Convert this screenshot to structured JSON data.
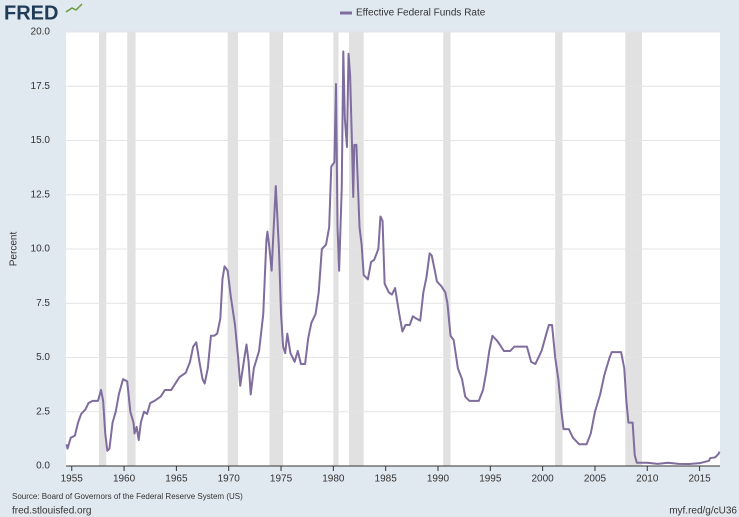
{
  "logo": "FRED",
  "chart_data": {
    "type": "line",
    "y_label": "Percent",
    "x": [
      1954.5,
      1954.6,
      1954.9,
      1955.3,
      1955.6,
      1955.9,
      1956.3,
      1956.6,
      1957.0,
      1957.5,
      1957.8,
      1958.0,
      1958.2,
      1958.4,
      1958.6,
      1958.9,
      1959.2,
      1959.5,
      1959.9,
      1960.3,
      1960.6,
      1960.9,
      1961.0,
      1961.2,
      1961.4,
      1961.6,
      1961.9,
      1962.2,
      1962.5,
      1962.9,
      1963.5,
      1963.9,
      1964.5,
      1964.9,
      1965.3,
      1965.9,
      1966.3,
      1966.6,
      1966.9,
      1967.2,
      1967.5,
      1967.7,
      1968.0,
      1968.3,
      1968.6,
      1968.9,
      1969.2,
      1969.4,
      1969.6,
      1969.9,
      1970.2,
      1970.6,
      1970.9,
      1971.1,
      1971.5,
      1971.7,
      1971.9,
      1972.1,
      1972.4,
      1972.9,
      1973.3,
      1973.6,
      1973.7,
      1973.9,
      1974.1,
      1974.3,
      1974.5,
      1974.8,
      1975.0,
      1975.2,
      1975.4,
      1975.6,
      1975.9,
      1976.3,
      1976.6,
      1976.9,
      1977.3,
      1977.6,
      1977.9,
      1978.3,
      1978.6,
      1978.9,
      1979.3,
      1979.6,
      1979.8,
      1980.1,
      1980.25,
      1980.4,
      1980.55,
      1980.8,
      1980.95,
      1981.1,
      1981.3,
      1981.45,
      1981.6,
      1981.8,
      1981.9,
      1982.0,
      1982.2,
      1982.5,
      1982.7,
      1982.9,
      1983.3,
      1983.6,
      1983.9,
      1984.3,
      1984.5,
      1984.7,
      1984.9,
      1985.3,
      1985.6,
      1985.9,
      1986.3,
      1986.6,
      1986.9,
      1987.3,
      1987.6,
      1987.9,
      1988.3,
      1988.6,
      1988.9,
      1989.2,
      1989.4,
      1989.7,
      1989.9,
      1990.3,
      1990.7,
      1990.9,
      1991.2,
      1991.5,
      1991.9,
      1992.3,
      1992.6,
      1993.0,
      1993.5,
      1993.9,
      1994.3,
      1994.6,
      1994.9,
      1995.2,
      1995.6,
      1995.9,
      1996.3,
      1996.9,
      1997.3,
      1997.9,
      1998.5,
      1998.9,
      1999.3,
      1999.9,
      2000.3,
      2000.6,
      2000.9,
      2001.2,
      2001.5,
      2001.8,
      2002.0,
      2002.5,
      2002.9,
      2003.5,
      2004.2,
      2004.6,
      2005.0,
      2005.5,
      2005.9,
      2006.4,
      2006.6,
      2007.5,
      2007.8,
      2008.0,
      2008.2,
      2008.6,
      2008.8,
      2009.0,
      2010.0,
      2011.0,
      2012.0,
      2013.0,
      2014.0,
      2015.0,
      2015.9,
      2016.0,
      2016.5,
      2016.8,
      2016.9
    ],
    "series": [
      {
        "name": "Effective Federal Funds Rate",
        "color": "#7f6d9e",
        "values": [
          1.0,
          0.8,
          1.3,
          1.4,
          2.0,
          2.4,
          2.6,
          2.9,
          3.0,
          3.0,
          3.5,
          3.0,
          1.5,
          0.7,
          0.8,
          2.0,
          2.5,
          3.3,
          4.0,
          3.9,
          2.5,
          2.0,
          1.5,
          1.8,
          1.2,
          2.0,
          2.5,
          2.4,
          2.9,
          3.0,
          3.2,
          3.5,
          3.5,
          3.8,
          4.1,
          4.3,
          4.8,
          5.5,
          5.7,
          4.8,
          4.0,
          3.8,
          4.5,
          6.0,
          6.0,
          6.1,
          6.8,
          8.6,
          9.2,
          9.0,
          7.8,
          6.5,
          5.0,
          3.7,
          5.0,
          5.6,
          4.8,
          3.3,
          4.5,
          5.3,
          7.0,
          10.4,
          10.8,
          10.0,
          9.0,
          11.0,
          12.9,
          10.0,
          7.0,
          5.5,
          5.2,
          6.1,
          5.2,
          4.8,
          5.3,
          4.7,
          4.7,
          5.9,
          6.6,
          7.0,
          8.0,
          10.0,
          10.2,
          11.0,
          13.8,
          14.0,
          17.6,
          11.0,
          9.0,
          12.8,
          19.1,
          16.0,
          14.7,
          19.0,
          18.0,
          14.5,
          12.4,
          14.8,
          14.8,
          11.0,
          10.2,
          8.8,
          8.6,
          9.4,
          9.5,
          10.0,
          11.5,
          11.3,
          8.4,
          8.0,
          7.9,
          8.2,
          7.0,
          6.2,
          6.5,
          6.5,
          6.9,
          6.8,
          6.7,
          8.0,
          8.7,
          9.8,
          9.7,
          9.0,
          8.5,
          8.3,
          8.0,
          7.5,
          6.0,
          5.8,
          4.5,
          4.0,
          3.2,
          3.0,
          3.0,
          3.0,
          3.5,
          4.3,
          5.3,
          6.0,
          5.8,
          5.6,
          5.3,
          5.3,
          5.5,
          5.5,
          5.5,
          4.8,
          4.7,
          5.3,
          6.0,
          6.5,
          6.5,
          5.0,
          4.0,
          2.5,
          1.7,
          1.7,
          1.3,
          1.0,
          1.0,
          1.5,
          2.5,
          3.3,
          4.2,
          5.0,
          5.25,
          5.25,
          4.5,
          3.0,
          2.0,
          2.0,
          0.5,
          0.15,
          0.15,
          0.1,
          0.15,
          0.1,
          0.09,
          0.13,
          0.24,
          0.36,
          0.4,
          0.55,
          0.66
        ]
      }
    ],
    "recessions": [
      [
        1957.6,
        1958.3
      ],
      [
        1960.3,
        1961.1
      ],
      [
        1969.9,
        1970.9
      ],
      [
        1973.9,
        1975.2
      ],
      [
        1980.0,
        1980.5
      ],
      [
        1981.5,
        1982.9
      ],
      [
        1990.5,
        1991.2
      ],
      [
        2001.2,
        2001.9
      ],
      [
        2007.9,
        2009.5
      ]
    ],
    "xlim": [
      1954.45,
      2016.95
    ],
    "xticks": [
      1955,
      1960,
      1965,
      1970,
      1975,
      1980,
      1985,
      1990,
      1995,
      2000,
      2005,
      2010,
      2015
    ],
    "ylim": [
      0,
      20
    ],
    "yticks": [
      {
        "value": 0,
        "label": "0.0"
      },
      2.5,
      {
        "value": 5,
        "label": "5.0"
      },
      7.5,
      {
        "value": 10,
        "label": "10.0"
      },
      12.5,
      {
        "value": 15,
        "label": "15.0"
      },
      17.5,
      {
        "value": 20,
        "label": "20.0"
      }
    ],
    "grid": true,
    "source": "Source: Board of Governors of the Federal Reserve System (US)",
    "site": "fred.stlouisfed.org",
    "short_link": "myf.red/g/cU36"
  }
}
